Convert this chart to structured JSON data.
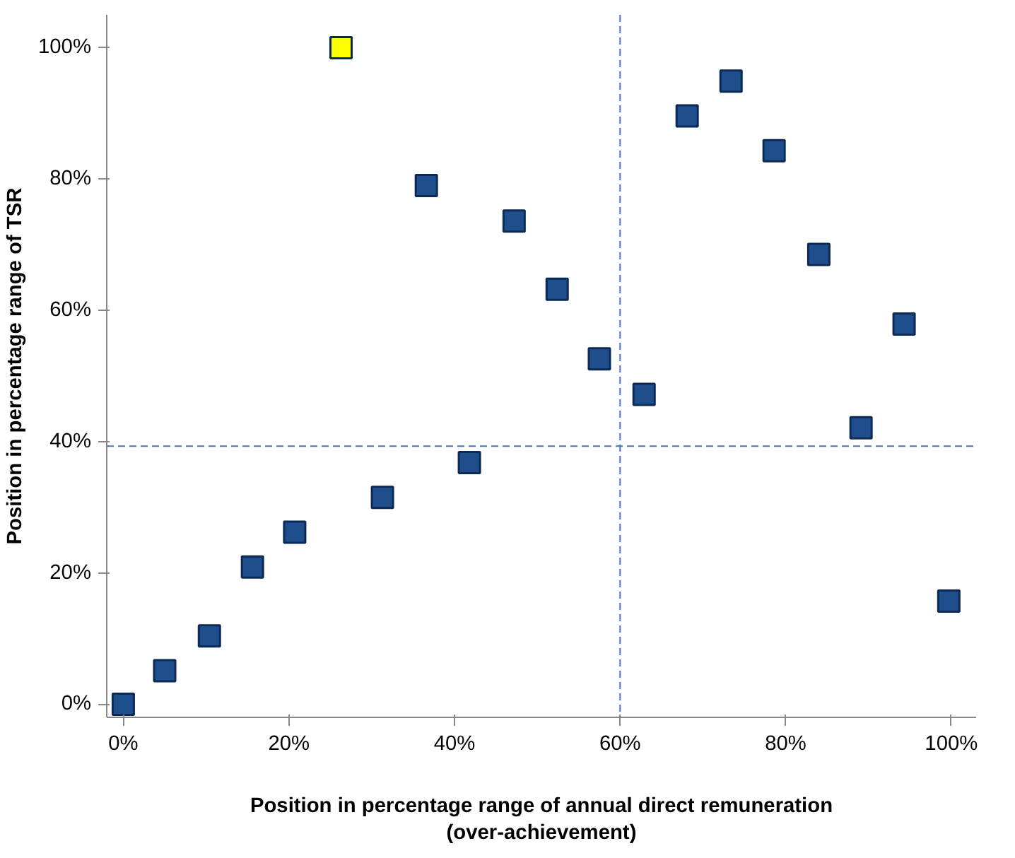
{
  "chart_data": {
    "type": "scatter",
    "xlabel": "Position in percentage range of annual direct remuneration\n(over-achievement)",
    "ylabel": "Position in percentage range of TSR",
    "xlim": [
      -2,
      103
    ],
    "ylim": [
      -2,
      105
    ],
    "xticks": [
      {
        "value": 0,
        "label": "0%"
      },
      {
        "value": 20,
        "label": "20%"
      },
      {
        "value": 40,
        "label": "40%"
      },
      {
        "value": 60,
        "label": "60%"
      },
      {
        "value": 80,
        "label": "80%"
      },
      {
        "value": 100,
        "label": "100%"
      }
    ],
    "yticks": [
      {
        "value": 0,
        "label": "0%"
      },
      {
        "value": 20,
        "label": "20%"
      },
      {
        "value": 40,
        "label": "40%"
      },
      {
        "value": 60,
        "label": "60%"
      },
      {
        "value": 80,
        "label": "80%"
      },
      {
        "value": 100,
        "label": "100%"
      }
    ],
    "marker": "square",
    "grid": false,
    "series": [
      {
        "color": "#1f4e8c",
        "x": [
          0,
          5,
          10.4,
          15.6,
          20.7,
          31.3,
          36.6,
          41.8,
          47.2,
          52.4,
          57.5,
          62.9,
          68.1,
          73.4,
          78.6,
          84,
          89.1,
          94.3,
          99.7
        ],
        "values": [
          0,
          5.1,
          10.4,
          20.9,
          26.2,
          31.5,
          79,
          36.8,
          73.6,
          63.2,
          52.6,
          47.2,
          89.6,
          94.9,
          84.3,
          68.5,
          42.1,
          57.9,
          15.7
        ]
      },
      {
        "color": "#ffff00",
        "x": [
          26.3
        ],
        "values": [
          100
        ]
      }
    ],
    "ref_lines": [
      {
        "axis": "x",
        "value": 60,
        "color": "#4472c4",
        "line_style": "dashed"
      },
      {
        "axis": "y",
        "value": 39.3,
        "color": "#4472c4",
        "line_style": "dashed"
      }
    ]
  }
}
